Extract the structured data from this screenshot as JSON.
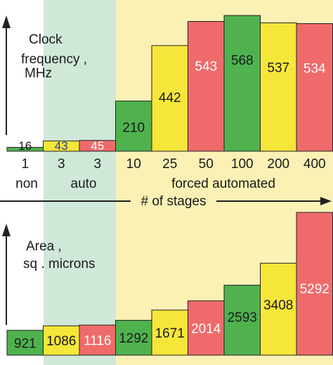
{
  "colors": {
    "green": "#4fb24f",
    "yellow": "#f6e63a",
    "red": "#ef6b6b",
    "auto_band": "#cfe8d8",
    "forced_band": "#fbf1b5",
    "stroke": "#222222",
    "label_dark": "#1a1a1a",
    "label_light": "#ffffff",
    "small_label_blue": "#2b3aa0"
  },
  "legend": {
    "x_axis_title": "# of stages",
    "group_non": "non",
    "group_auto": "auto",
    "group_forced": "forced automated"
  },
  "chart_data": [
    {
      "type": "bar",
      "title": "Clock frequency , MHz",
      "title_lines": [
        "Clock",
        "frequency ,",
        "MHz"
      ],
      "xlabel": "# of stages",
      "categories": [
        "1",
        "3",
        "3",
        "10",
        "25",
        "50",
        "100",
        "200",
        "400"
      ],
      "groups": [
        "non",
        "auto",
        "auto",
        "forced automated",
        "forced automated",
        "forced automated",
        "forced automated",
        "forced automated",
        "forced automated"
      ],
      "values": [
        16,
        43,
        45,
        210,
        442,
        543,
        568,
        537,
        534
      ],
      "bar_colors": [
        "green",
        "yellow",
        "red",
        "green",
        "yellow",
        "red",
        "green",
        "yellow",
        "red"
      ],
      "ylim": [
        0,
        568
      ]
    },
    {
      "type": "bar",
      "title": "Area , sq . microns",
      "title_lines": [
        "Area ,",
        "sq . microns"
      ],
      "categories": [
        "1",
        "3",
        "3",
        "10",
        "25",
        "50",
        "100",
        "200",
        "400"
      ],
      "values": [
        921,
        1086,
        1116,
        1292,
        1671,
        2014,
        2593,
        3408,
        5292
      ],
      "bar_colors": [
        "green",
        "yellow",
        "red",
        "green",
        "yellow",
        "red",
        "green",
        "yellow",
        "red"
      ],
      "ylim": [
        0,
        5292
      ]
    }
  ]
}
